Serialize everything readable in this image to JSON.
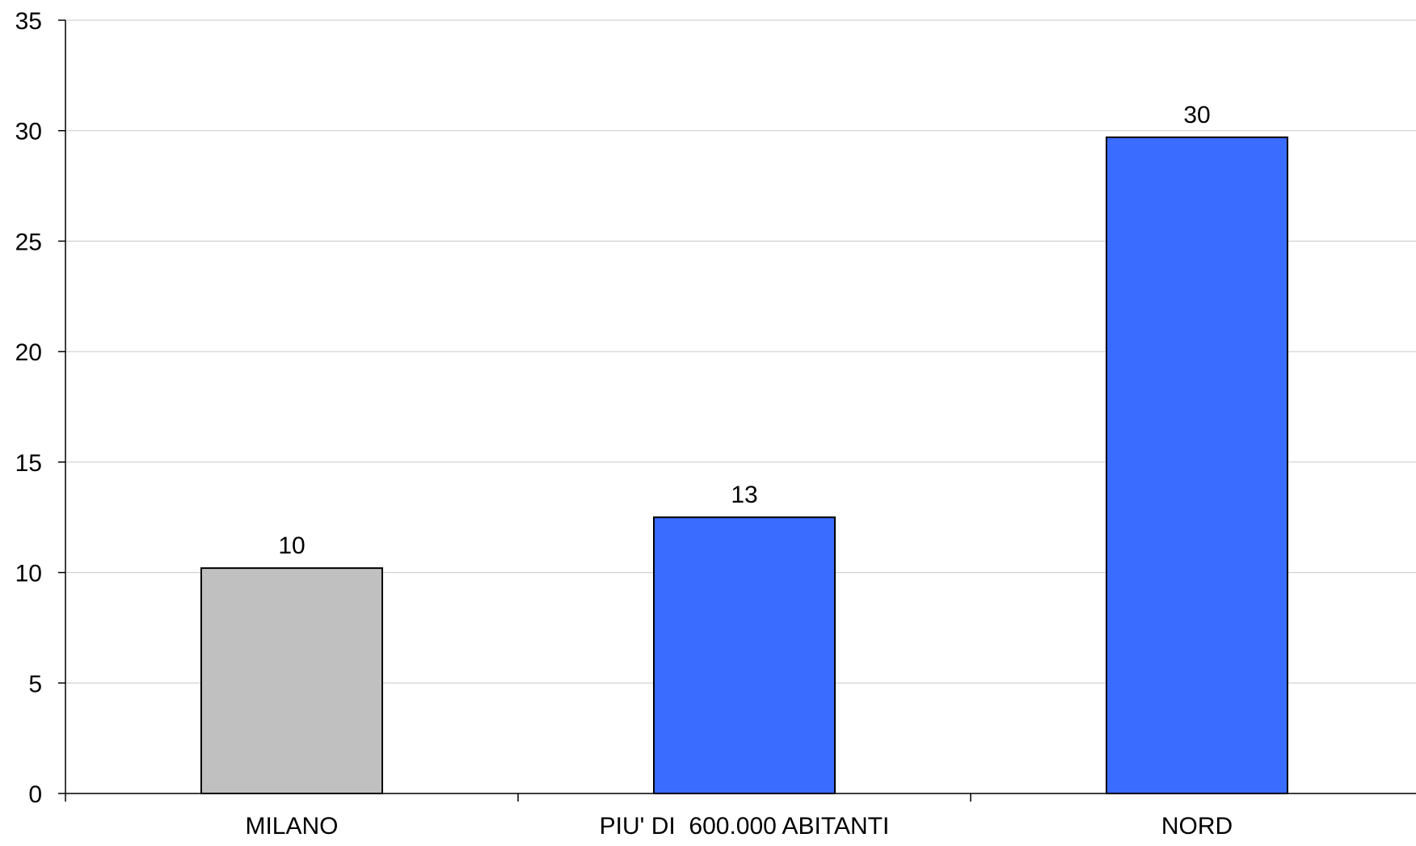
{
  "chart_data": {
    "type": "bar",
    "categories": [
      "MILANO",
      "PIU' DI  600.000 ABITANTI",
      "NORD"
    ],
    "values": [
      10.2,
      12.5,
      29.7
    ],
    "data_labels": [
      "10",
      "13",
      "30"
    ],
    "bar_colors": [
      "#c0c0c0",
      "#3a6cff",
      "#3a6cff"
    ],
    "ylim": [
      0,
      35
    ],
    "yticks": [
      0,
      5,
      10,
      15,
      20,
      25,
      30,
      35
    ],
    "grid": true,
    "legend": "none",
    "title": "",
    "xlabel": "",
    "ylabel": ""
  }
}
